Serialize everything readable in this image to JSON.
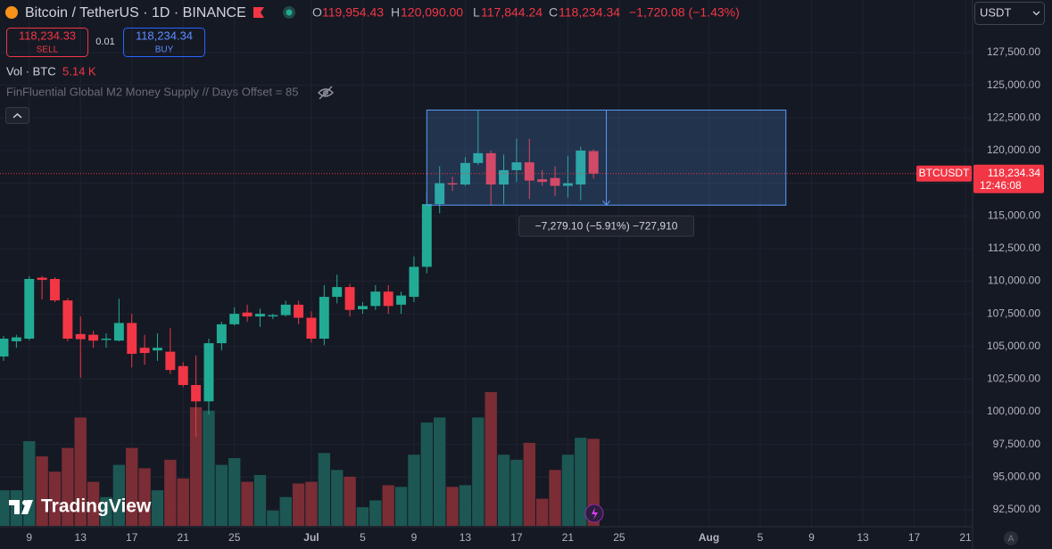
{
  "header": {
    "symbol": "Bitcoin / TetherUS · 1D · BINANCE",
    "ohlc": [
      {
        "key": "O",
        "value": "119,954.43"
      },
      {
        "key": "H",
        "value": "120,090.00"
      },
      {
        "key": "L",
        "value": "117,844.24"
      },
      {
        "key": "C",
        "value": "118,234.34"
      }
    ],
    "change": "−1,720.08 (−1.43%)",
    "sell": {
      "price": "118,234.33",
      "label": "SELL"
    },
    "spread": "0.01",
    "buy": {
      "price": "118,234.34",
      "label": "BUY"
    },
    "volume_label": "Vol · BTC",
    "volume_value": "5.14 K",
    "indicator": "FinFluential Global M2 Money Supply // Days Offset = 85",
    "currency": "USDT",
    "brand": "TradingView"
  },
  "chart_data": {
    "type": "candlestick",
    "title": "Bitcoin / TetherUS · 1D · BINANCE",
    "x": [
      "Jun 7",
      "Jun 8",
      "Jun 9",
      "Jun 10",
      "Jun 11",
      "Jun 12",
      "Jun 13",
      "Jun 14",
      "Jun 15",
      "Jun 16",
      "Jun 17",
      "Jun 18",
      "Jun 19",
      "Jun 20",
      "Jun 21",
      "Jun 22",
      "Jun 23",
      "Jun 24",
      "Jun 25",
      "Jun 26",
      "Jun 27",
      "Jun 28",
      "Jun 29",
      "Jun 30",
      "Jul 1",
      "Jul 2",
      "Jul 3",
      "Jul 4",
      "Jul 5",
      "Jul 6",
      "Jul 7",
      "Jul 8",
      "Jul 9",
      "Jul 10",
      "Jul 11",
      "Jul 12",
      "Jul 13",
      "Jul 14",
      "Jul 15",
      "Jul 16",
      "Jul 17",
      "Jul 18",
      "Jul 19",
      "Jul 20",
      "Jul 21",
      "Jul 22",
      "Jul 23"
    ],
    "open": [
      104234,
      105400,
      105600,
      110270,
      110170,
      108530,
      105950,
      105900,
      105500,
      105450,
      106800,
      104900,
      104700,
      104600,
      103500,
      102050,
      100800,
      105250,
      106700,
      107600,
      107300,
      107300,
      107400,
      108200,
      107200,
      105600,
      108800,
      109550,
      107850,
      108100,
      109200,
      108200,
      108800,
      111100,
      115900,
      117500,
      117400,
      119050,
      119800,
      117400,
      118500,
      119100,
      117800,
      117900,
      117300,
      117400,
      119954.43
    ],
    "high": [
      105800,
      105900,
      110370,
      110400,
      110300,
      108700,
      107300,
      106200,
      106000,
      108650,
      107500,
      105900,
      106000,
      106400,
      103800,
      104300,
      105600,
      106900,
      108000,
      108200,
      107900,
      107500,
      108500,
      108500,
      107700,
      109700,
      110500,
      109800,
      108400,
      109700,
      109700,
      109200,
      111900,
      116800,
      118800,
      118000,
      119500,
      123100,
      120000,
      119700,
      120900,
      120900,
      118500,
      118800,
      119600,
      120300,
      120090
    ],
    "low": [
      103900,
      104900,
      105460,
      108600,
      108400,
      105400,
      102600,
      104900,
      104900,
      105400,
      103400,
      103600,
      103900,
      102900,
      101900,
      98100,
      99800,
      104700,
      106600,
      106900,
      106500,
      107100,
      107300,
      106700,
      105300,
      105100,
      108300,
      107300,
      107500,
      107800,
      107500,
      107500,
      108400,
      110600,
      115200,
      116900,
      117300,
      118900,
      115820,
      115900,
      117600,
      116300,
      117300,
      116500,
      116400,
      116200,
      117844.24
    ],
    "close": [
      105600,
      105700,
      110170,
      110100,
      108530,
      105600,
      105560,
      105450,
      105600,
      106800,
      104440,
      104500,
      104900,
      103200,
      102050,
      100800,
      105250,
      106700,
      107500,
      107300,
      107500,
      107400,
      108200,
      107200,
      105600,
      108800,
      109550,
      107800,
      108100,
      109200,
      108100,
      108900,
      111100,
      115900,
      117500,
      117400,
      119050,
      119800,
      117400,
      118500,
      119100,
      117700,
      117600,
      117300,
      117500,
      120000,
      118234.34
    ],
    "volume": [
      2.1,
      2.1,
      5.0,
      4.1,
      3.2,
      4.6,
      6.4,
      2.6,
      1.7,
      3.6,
      4.6,
      3.4,
      2.1,
      3.9,
      2.8,
      7.0,
      6.8,
      3.6,
      4.0,
      2.6,
      3.0,
      0.9,
      1.7,
      2.5,
      2.6,
      4.3,
      3.3,
      2.9,
      1.1,
      1.5,
      2.4,
      2.3,
      4.2,
      6.1,
      6.4,
      2.3,
      2.4,
      6.4,
      7.9,
      4.2,
      3.9,
      4.9,
      1.6,
      3.3,
      4.2,
      5.2,
      5.14
    ],
    "up_color": "#22ab94",
    "down_color": "#f23645",
    "volume_up_color": "#1c5753",
    "volume_down_color": "#7a2d35",
    "xlim": [
      "Jun 7",
      "Aug 21"
    ],
    "ylim": [
      91270,
      131526
    ],
    "xticks": [
      {
        "value": "Jun 9",
        "label": "9"
      },
      {
        "value": "Jun 13",
        "label": "13"
      },
      {
        "value": "Jun 17",
        "label": "17"
      },
      {
        "value": "Jun 21",
        "label": "21"
      },
      {
        "value": "Jun 25",
        "label": "25"
      },
      {
        "value": "Jul 1",
        "label": "Jul"
      },
      {
        "value": "Jul 5",
        "label": "5"
      },
      {
        "value": "Jul 9",
        "label": "9"
      },
      {
        "value": "Jul 13",
        "label": "13"
      },
      {
        "value": "Jul 17",
        "label": "17"
      },
      {
        "value": "Jul 21",
        "label": "21"
      },
      {
        "value": "Jul 25",
        "label": "25"
      },
      {
        "value": "Aug 1",
        "label": "Aug"
      },
      {
        "value": "Aug 5",
        "label": "5"
      },
      {
        "value": "Aug 9",
        "label": "9"
      },
      {
        "value": "Aug 13",
        "label": "13"
      },
      {
        "value": "Aug 17",
        "label": "17"
      },
      {
        "value": "Aug 21",
        "label": "21"
      }
    ],
    "yticks": [
      {
        "value": 92500,
        "label": "92,500.00"
      },
      {
        "value": 95000,
        "label": "95,000.00"
      },
      {
        "value": 97500,
        "label": "97,500.00"
      },
      {
        "value": 100000,
        "label": "100,000.00"
      },
      {
        "value": 102500,
        "label": "102,500.00"
      },
      {
        "value": 105000,
        "label": "105,000.00"
      },
      {
        "value": 107500,
        "label": "107,500.00"
      },
      {
        "value": 110000,
        "label": "110,000.00"
      },
      {
        "value": 112500,
        "label": "112,500.00"
      },
      {
        "value": 115000,
        "label": "115,000.00"
      },
      {
        "value": 117500,
        "label": "117,500.00"
      },
      {
        "value": 120000,
        "label": "120,000.00"
      },
      {
        "value": 122500,
        "label": "122,500.00"
      },
      {
        "value": 125000,
        "label": "125,000.00"
      },
      {
        "value": 127500,
        "label": "127,500.00"
      }
    ],
    "grid": true,
    "price_tag": {
      "symbol": "BTCUSDT",
      "price": "118,234.34",
      "countdown": "12:46:08"
    },
    "measure": {
      "from": "Jul 10",
      "to": "Aug 7",
      "arrow": "Jul 24",
      "top": 123100,
      "bottom": 115820.9,
      "label": "−7,279.10 (−5.91%) −727,910",
      "color": "#5b9cf6"
    }
  }
}
